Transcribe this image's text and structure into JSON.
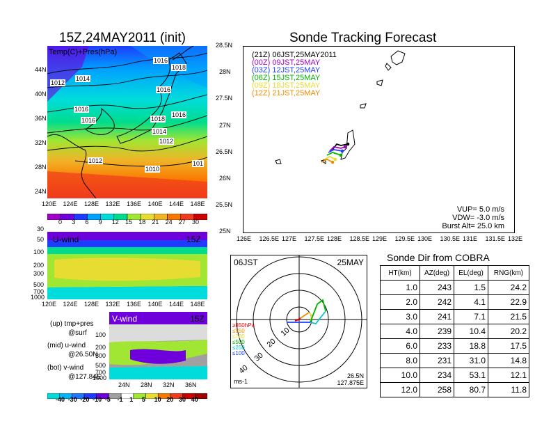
{
  "left": {
    "title": "15Z,24MAY2011 (init)",
    "map_label": "Temp(C)+Pres(hPa)",
    "map_lat_ticks": [
      "44N",
      "40N",
      "36N",
      "32N",
      "28N",
      "24N"
    ],
    "lon_ticks": [
      "120E",
      "124E",
      "128E",
      "132E",
      "136E",
      "140E",
      "144E",
      "148E"
    ],
    "isobar_labels": [
      "1016",
      "1012",
      "1014",
      "1016",
      "1018",
      "1016",
      "1016",
      "1018",
      "1016",
      "1014",
      "1012",
      "1010",
      "1012",
      "101"
    ],
    "temp_colorbar": [
      "0",
      "3",
      "6",
      "9",
      "12",
      "15",
      "18",
      "21",
      "24",
      "27",
      "30"
    ],
    "temp_colors": [
      "#a000c8",
      "#6e00dc",
      "#1e3cff",
      "#00a0ff",
      "#00dcdc",
      "#00dc8c",
      "#a0e632",
      "#e6dc32",
      "#f0b428",
      "#fa7800",
      "#f03c1e",
      "#c80000"
    ],
    "uwind": {
      "label": "U-wind",
      "time": "15Z",
      "y_ticks": [
        "30",
        "50",
        "100",
        "200",
        "300",
        "500",
        "700",
        "1000"
      ]
    },
    "vwind": {
      "label": "V-wind",
      "time": "15Z",
      "y_ticks": [
        "100",
        "200",
        "300",
        "500",
        "700",
        "1000"
      ],
      "x_ticks": [
        "24N",
        "28N",
        "32N",
        "36N"
      ]
    },
    "legend": {
      "l1": "(up) tmp+pres",
      "l2": "@surf",
      "l3": "(mid) u-wind",
      "l4": "@26.50N",
      "l5": "(bot) v-wind",
      "l6": "@127.84E"
    },
    "wind_colorbar": [
      "-40",
      "-30",
      "-20",
      "-10",
      "-5",
      "-1",
      "1",
      "5",
      "10",
      "20",
      "30",
      "40"
    ]
  },
  "right": {
    "title": "Sonde Tracking Forecast",
    "legend": [
      {
        "text": "(21Z)  06JST,25MAY2011",
        "color": "#000000"
      },
      {
        "text": "(00Z)  09JST,25MAY",
        "color": "#a000c8"
      },
      {
        "text": "(03Z)  12JST,25MAY",
        "color": "#1e3cff"
      },
      {
        "text": "(06Z)  15JST,25MAY",
        "color": "#00b400"
      },
      {
        "text": "(09Z)  18JST,25MAY",
        "color": "#e6dc32"
      },
      {
        "text": "(12Z)  21JST,25MAY",
        "color": "#f08c00"
      }
    ],
    "lat_ticks": [
      "28.5N",
      "28N",
      "27.5N",
      "27N",
      "26.5N",
      "26N",
      "25.5N",
      "25N"
    ],
    "lon_ticks": [
      "126E",
      "126.5E",
      "127E",
      "127.5E",
      "128E",
      "128.5E",
      "129E",
      "129.5E",
      "130E",
      "130.5E",
      "131E",
      "131.5E",
      "132E"
    ],
    "info": {
      "vup": "VUP=  5.0  m/s",
      "vdw": "VDW= -3.0  m/s",
      "burst": "Burst Alt=  25.0  km"
    }
  },
  "polar": {
    "time": "06JST",
    "date": "25MAY",
    "rings": [
      "10",
      "20",
      "30",
      "40"
    ],
    "levels": [
      {
        "text": "≥850hPa",
        "color": "#e60000"
      },
      {
        "text": "≤850",
        "color": "#f08c00"
      },
      {
        "text": "≤700",
        "color": "#e6dc32"
      },
      {
        "text": "≤500",
        "color": "#00b400"
      },
      {
        "text": "≤250",
        "color": "#00c8c8"
      },
      {
        "text": "≤100",
        "color": "#1e3cff"
      }
    ],
    "unit": "ms-1",
    "lat": "26.5N",
    "lon": "127.875E"
  },
  "sonde": {
    "title": "Sonde Dir from COBRA",
    "headers": [
      "HT(km)",
      "AZ(deg)",
      "EL(deg)",
      "RNG(km)"
    ],
    "rows": [
      [
        "1.0",
        "243",
        "1.5",
        "24.2"
      ],
      [
        "2.0",
        "242",
        "4.1",
        "22.9"
      ],
      [
        "3.0",
        "241",
        "7.1",
        "21.5"
      ],
      [
        "4.0",
        "239",
        "10.4",
        "20.2"
      ],
      [
        "6.0",
        "233",
        "18.8",
        "17.5"
      ],
      [
        "8.0",
        "231",
        "31.0",
        "14.8"
      ],
      [
        "10.0",
        "234",
        "53.1",
        "12.1"
      ],
      [
        "12.0",
        "258",
        "80.7",
        "11.8"
      ]
    ]
  }
}
